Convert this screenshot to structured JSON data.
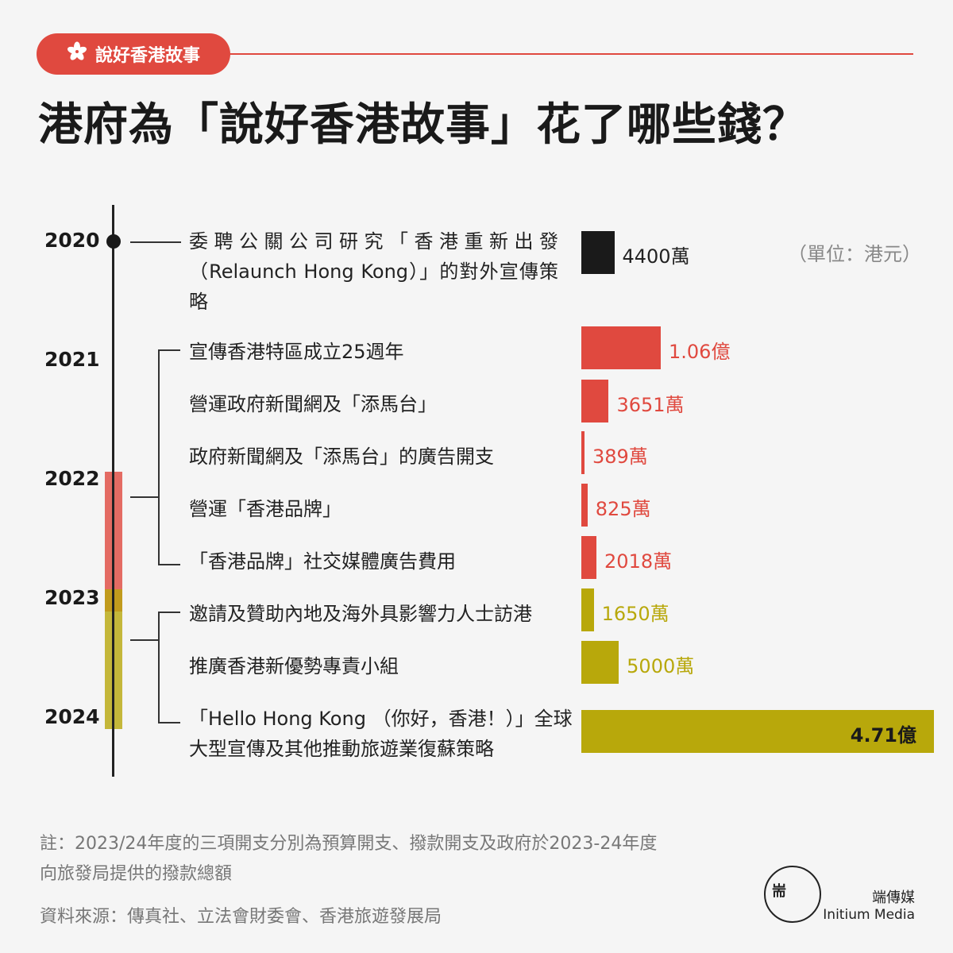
{
  "header": {
    "tag_label": "說好香港故事",
    "tag_icon": "bauhinia-icon",
    "title": "港府為「說好香港故事」花了哪些錢？"
  },
  "unit_label": "（單位：港元）",
  "years": [
    "2020",
    "2021",
    "2022",
    "2023",
    "2024"
  ],
  "colors": {
    "black": "#1a1a1a",
    "red": "#e0493f",
    "olive": "#b8a80b",
    "background": "#f5f5f5"
  },
  "chart_data": {
    "type": "bar",
    "orientation": "horizontal",
    "unit": "港元",
    "categories": [
      "委聘公關公司研究「香港重新出發（Relaunch Hong Kong）」的對外宣傳策略",
      "宣傳香港特區成立25週年",
      "營運政府新聞網及「添馬台」",
      "政府新聞網及「添馬台」的廣告開支",
      "營運「香港品牌」",
      "「香港品牌」社交媒體廣告費用",
      "邀請及贊助內地及海外具影響力人士訪港",
      "推廣香港新優勢專責小組",
      "「Hello Hong Kong （你好，香港！）」全球大型宣傳及其他推動旅遊業復蘇策略"
    ],
    "values": [
      44000000,
      106000000,
      36510000,
      3890000,
      8250000,
      20180000,
      16500000,
      50000000,
      471000000
    ],
    "value_labels": [
      "4400萬",
      "1.06億",
      "3651萬",
      "389萬",
      "825萬",
      "2018萬",
      "1650萬",
      "5000萬",
      "4.71億"
    ],
    "groups": [
      "2020",
      "2021-2022",
      "2021-2022",
      "2021-2022",
      "2021-2022",
      "2021-2022",
      "2023-2024",
      "2023-2024",
      "2023-2024"
    ],
    "bar_colors": [
      "#1a1a1a",
      "#e0493f",
      "#e0493f",
      "#e0493f",
      "#e0493f",
      "#e0493f",
      "#b8a80b",
      "#b8a80b",
      "#b8a80b"
    ]
  },
  "footer": {
    "note_line1": "註：2023/24年度的三項開支分別為預算開支、撥款開支及政府於2023-24年度",
    "note_line2": "向旅發局提供的撥款總額",
    "source": "資料來源：傳真社、立法會財委會、香港旅遊發展局",
    "logo_mark": "耑",
    "logo_cn": "端傳媒",
    "logo_en": "Initium Media"
  }
}
